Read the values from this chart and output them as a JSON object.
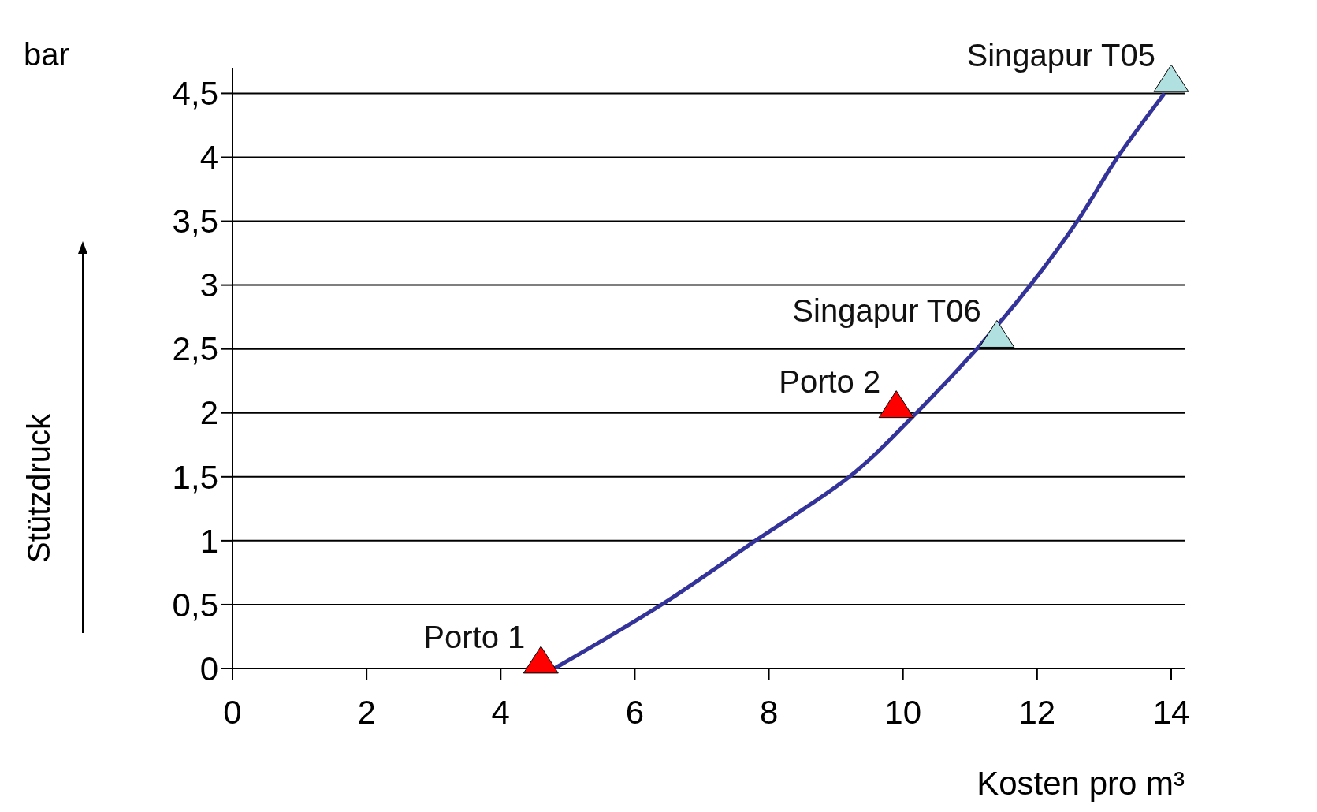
{
  "chart_data": {
    "type": "scatter",
    "xlabel": "Kosten pro m³",
    "ylabel": "Stützdruck",
    "xlim": [
      0,
      14.2
    ],
    "ylim": [
      0,
      4.7
    ],
    "xticks": [
      0,
      2,
      4,
      6,
      8,
      10,
      12,
      14
    ],
    "yticks": [
      0,
      {
        "value": 0.5,
        "label": "0,5"
      },
      1,
      {
        "value": 1.5,
        "label": "1,5"
      },
      2,
      {
        "value": 2.5,
        "label": "2,5"
      },
      3,
      {
        "value": 3.5,
        "label": "3,5"
      },
      4,
      {
        "value": 4.5,
        "label": "4,5"
      }
    ],
    "grid": "y",
    "marker": "triangle",
    "series": [
      {
        "type": "line",
        "color": "#333399",
        "marker": "none",
        "x": [
          4.8,
          6.4,
          7.8,
          9.2,
          10.2,
          11.1,
          11.9,
          12.6,
          13.2,
          13.9
        ],
        "values": [
          0,
          0.5,
          1,
          1.5,
          2,
          2.5,
          3,
          3.5,
          4,
          4.5
        ]
      },
      {
        "color": "#ff0000",
        "x": [
          4.6,
          9.9
        ],
        "values": [
          0.05,
          2.05
        ]
      },
      {
        "color": "#b0e0e0",
        "x": [
          11.4,
          14
        ],
        "values": [
          2.6,
          4.6
        ]
      }
    ],
    "annotations": [
      "bar",
      {
        "text": "Porto 1",
        "x": 4.6,
        "y": 0.05
      },
      {
        "text": "Porto 2",
        "x": 9.9,
        "y": 2.05
      },
      {
        "text": "Singapur T06",
        "x": 11.4,
        "y": 2.6
      },
      {
        "text": "Singapur T05",
        "x": 14,
        "y": 4.6
      }
    ]
  }
}
